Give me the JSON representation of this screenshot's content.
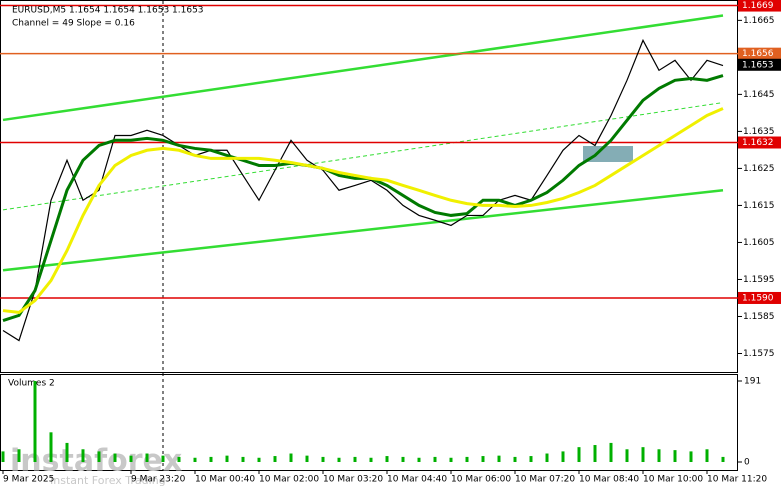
{
  "chart_data": {
    "type": "line",
    "title": "EURUSD,M5  1.1654 1.1654 1.1653 1.1653",
    "subtitle": "Channel = 49 Slope = 0.16",
    "categories": [
      "9 Mar 2025",
      null,
      null,
      null,
      null,
      null,
      null,
      null,
      "9 Mar 23:20",
      null,
      null,
      null,
      "10 Mar 00:40",
      null,
      null,
      null,
      "10 Mar 02:00",
      null,
      null,
      null,
      "10 Mar 03:20",
      null,
      null,
      null,
      "10 Mar 04:40",
      null,
      null,
      null,
      "10 Mar 06:00",
      null,
      null,
      null,
      "10 Mar 07:20",
      null,
      null,
      null,
      "10 Mar 08:40",
      null,
      null,
      null,
      "10 Mar 10:00",
      null,
      null,
      null,
      "10 Mar 11:20",
      null
    ],
    "series": [
      {
        "color": "#000000",
        "values": [
          1.15812,
          1.15785,
          1.1592,
          1.16164,
          1.16272,
          1.16164,
          1.16191,
          1.16339,
          1.16339,
          1.16353,
          1.16339,
          1.16312,
          1.16285,
          1.16299,
          1.16299,
          1.16231,
          1.16164,
          1.16245,
          1.16326,
          1.16272,
          1.16245,
          1.16191,
          1.16204,
          1.16218,
          1.16191,
          1.1615,
          1.16123,
          1.1611,
          1.16096,
          1.16123,
          1.16123,
          1.16164,
          1.16177,
          1.16164,
          1.16231,
          1.16299,
          1.16339,
          1.16312,
          1.16393,
          1.16488,
          1.16596,
          1.16515,
          1.16542,
          1.16488,
          1.16542,
          1.16528
        ]
      },
      {
        "color": "#007a00",
        "values": [
          1.15839,
          1.15853,
          1.1592,
          1.16055,
          1.16191,
          1.16272,
          1.16312,
          1.16326,
          1.16326,
          1.16331,
          1.16326,
          1.16312,
          1.16304,
          1.16299,
          1.16285,
          1.16272,
          1.16258,
          1.16258,
          1.16264,
          1.16258,
          1.1625,
          1.16231,
          1.16223,
          1.16223,
          1.16204,
          1.16177,
          1.1615,
          1.16131,
          1.16123,
          1.16128,
          1.16164,
          1.16164,
          1.1615,
          1.16164,
          1.16185,
          1.16218,
          1.16258,
          1.16285,
          1.16326,
          1.1638,
          1.16434,
          1.16466,
          1.16488,
          1.16493,
          1.16488,
          1.16501
        ]
      },
      {
        "color": "#f0f000",
        "values": [
          1.15866,
          1.15861,
          1.15893,
          1.15947,
          1.16028,
          1.16123,
          1.16204,
          1.16258,
          1.16285,
          1.16299,
          1.16304,
          1.16299,
          1.16285,
          1.16277,
          1.16277,
          1.16277,
          1.16277,
          1.16272,
          1.16266,
          1.16258,
          1.1625,
          1.16239,
          1.16231,
          1.16223,
          1.16218,
          1.16204,
          1.16191,
          1.16177,
          1.16164,
          1.16155,
          1.1615,
          1.1615,
          1.16147,
          1.1615,
          1.16158,
          1.16169,
          1.16185,
          1.16204,
          1.16231,
          1.16258,
          1.16285,
          1.16312,
          1.16339,
          1.16366,
          1.16393,
          1.16412
        ]
      }
    ],
    "trendlines": [
      {
        "color": "#33dd33",
        "values": [
          1.16381,
          1.16663
        ]
      },
      {
        "color": "#33dd33",
        "values": [
          1.15975,
          1.16191
        ]
      },
      {
        "color": "#33dd33",
        "dashed": true,
        "values": [
          1.16138,
          1.16428
        ]
      }
    ],
    "levels": [
      {
        "value": 1.1669,
        "color": "#e00000"
      },
      {
        "value": 1.1656,
        "color": "#e06020"
      },
      {
        "value": 1.1632,
        "color": "#e00000"
      },
      {
        "value": 1.159,
        "label": "1.1590",
        "color": "#e00000"
      }
    ],
    "current_price": {
      "value": 1.1653,
      "color": "#000000"
    },
    "ylim": [
      1.157,
      1.16705
    ],
    "yticks": [
      1.1665,
      1.1645,
      1.1635,
      1.1625,
      1.1615,
      1.1605,
      1.1595,
      1.1585,
      1.1575
    ],
    "volume": {
      "name": "Volumes 2",
      "color": "#00b000",
      "values": [
        25,
        30,
        191,
        70,
        45,
        30,
        25,
        20,
        15,
        20,
        15,
        12,
        10,
        12,
        15,
        12,
        10,
        14,
        20,
        15,
        12,
        10,
        12,
        10,
        14,
        12,
        10,
        12,
        10,
        12,
        14,
        15,
        12,
        14,
        20,
        25,
        35,
        40,
        45,
        30,
        35,
        30,
        28,
        25,
        30,
        12
      ],
      "ylim": [
        0,
        191
      ],
      "yticks": [
        0,
        191
      ]
    },
    "watermark": {
      "brand": "instaforex",
      "tagline": "Instant Forex Trading"
    }
  }
}
